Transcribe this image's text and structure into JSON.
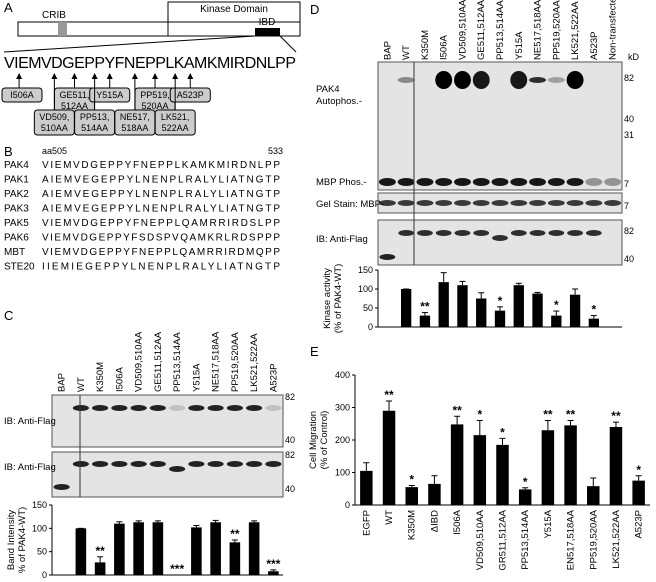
{
  "panel_labels": [
    "A",
    "B",
    "C",
    "D",
    "E"
  ],
  "diagram": {
    "crib": "CRIB",
    "kinase": "Kinase Domain",
    "ibd": "IBD",
    "sequence": "VIEMVDGEPPYFNEPPLKAMKMIRDNLPP",
    "mutants": [
      [
        "I506A"
      ],
      [
        "GE511,",
        "512AA"
      ],
      [
        "Y515A"
      ],
      [
        "PP519,",
        "520AA"
      ],
      [
        "A523P"
      ],
      [
        "VD509,",
        "510AA"
      ],
      [
        "PP513,",
        "514AA"
      ],
      [
        "NE517,",
        "518AA"
      ],
      [
        "LK521,",
        "522AA"
      ]
    ]
  },
  "alignment": {
    "start": "aa505",
    "end": "533",
    "rows": [
      {
        "name": "PAK4",
        "seq": "VIEMVDGEPPYFNEPPLKAMKMIRDNLPP"
      },
      {
        "name": "PAK1",
        "seq": "AIEMVEGEPPYLNENPLRALYLIATNGTP"
      },
      {
        "name": "PAK2",
        "seq": "AIEMVEGEPPYLNENPLRALYLIATNGTP"
      },
      {
        "name": "PAK3",
        "seq": "AIEMVEGEPPYLNENPLRALYLIATNGTP"
      },
      {
        "name": "PAK5",
        "seq": "VIEMVDGEPPYFNEPPLQAMRRIRDSLPP"
      },
      {
        "name": "PAK6",
        "seq": "VIEMVDGEPPYFSDSPVQAMKRLRDSPPP"
      },
      {
        "name": "MBT",
        "seq": "VIEMVDGEPPYFNEPPLQAMRRIRDMQPP"
      },
      {
        "name": "STE20",
        "seq": "IIEMIEGEPPYLNENPLRALYLIATNGTP"
      }
    ]
  },
  "blot_text": {
    "c": [
      "IB: Anti-Flag",
      "IB: Anti-Flag"
    ],
    "c_kd": [
      "82",
      "40",
      "82",
      "40"
    ],
    "d": [
      "PAK4",
      "Autophos.-",
      "MBP Phos.-",
      "Gel Stain: MBP-",
      "IB: Anti-Flag"
    ],
    "d_kd": [
      "kD",
      "82",
      "40",
      "31",
      "7",
      "7",
      "82",
      "40"
    ]
  },
  "chart_data": [
    {
      "type": "bar",
      "ylabel": [
        "Band Intensity",
        "% of PAK4-WT)"
      ],
      "categories": [
        "BAP",
        "WT",
        "K350M",
        "I506A",
        "VD509,510AA",
        "GE511,512AA",
        "PP513,514AA",
        "Y515A",
        "NE517,518AA",
        "PP519,520AA",
        "LK521,522AA",
        "A523P"
      ],
      "values": [
        null,
        100,
        27,
        110,
        113,
        113,
        0,
        102,
        113,
        70,
        113,
        8
      ],
      "errors": [
        null,
        0,
        12,
        4,
        3,
        3,
        0,
        4,
        4,
        5,
        3,
        3
      ],
      "annotations": [
        null,
        null,
        "**",
        null,
        null,
        null,
        "***",
        null,
        null,
        "**",
        null,
        "***"
      ],
      "color": "#000000",
      "ylim": [
        0,
        150
      ],
      "yticks": [
        0,
        50,
        100,
        150
      ]
    },
    {
      "type": "bar",
      "ylabel": [
        "Kinase activity",
        "(% of PAK4-WT)"
      ],
      "categories": [
        "BAP",
        "WT",
        "K350M",
        "I506A",
        "VD509,510AA",
        "GE511,512AA",
        "PP513,514AA",
        "Y515A",
        "NE517,518AA",
        "PP519,520AA",
        "LK521,522AA",
        "A523P",
        "Non-transfected"
      ],
      "values": [
        null,
        100,
        30,
        118,
        110,
        75,
        43,
        110,
        88,
        30,
        85,
        22,
        null
      ],
      "errors": [
        null,
        0,
        8,
        25,
        10,
        15,
        10,
        5,
        3,
        12,
        15,
        8,
        null
      ],
      "annotations": [
        null,
        null,
        "**",
        null,
        null,
        null,
        "*",
        null,
        null,
        "*",
        null,
        "*",
        null
      ],
      "color": "#000000",
      "ylim": [
        0,
        150
      ],
      "yticks": [
        0,
        50,
        100,
        150
      ]
    },
    {
      "type": "bar",
      "ylabel": [
        "Cell Migration",
        "(% of Control)"
      ],
      "categories": [
        "EGFP",
        "WT",
        "K350M",
        "ΔIBD",
        "I506A",
        "VD509,510AA",
        "GR511,512AA",
        "PP513,514AA",
        "Y515A",
        "EN517,518AA",
        "PP519,520AA",
        "LK521,522AA",
        "A523P"
      ],
      "values": [
        105,
        290,
        55,
        65,
        248,
        215,
        185,
        48,
        230,
        245,
        58,
        240,
        75
      ],
      "errors": [
        25,
        30,
        5,
        25,
        25,
        45,
        20,
        5,
        30,
        15,
        25,
        15,
        15
      ],
      "annotations": [
        null,
        "**",
        "*",
        null,
        "**",
        "*",
        "*",
        "*",
        "**",
        "**",
        null,
        "**",
        "*"
      ],
      "color": "#000000",
      "ylim": [
        0,
        400
      ],
      "yticks": [
        0,
        100,
        200,
        300,
        400
      ]
    }
  ]
}
